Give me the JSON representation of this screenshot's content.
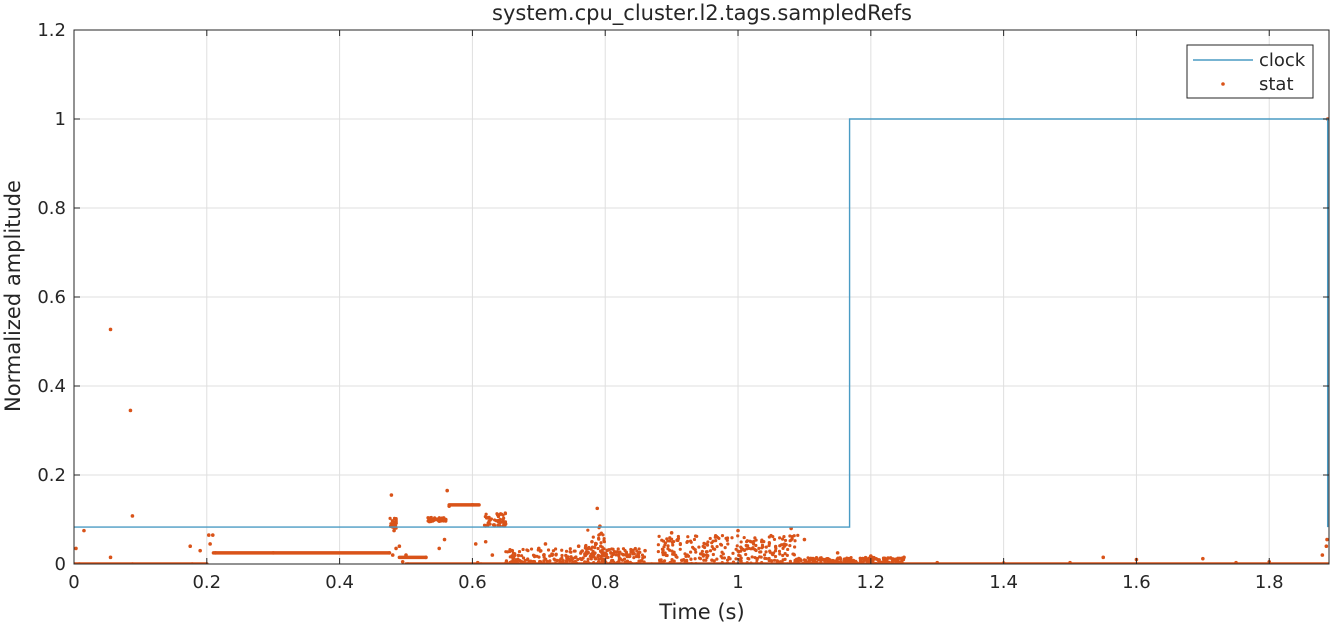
{
  "chart_data": {
    "type": "line",
    "title": "system.cpu_cluster.l2.tags.sampledRefs",
    "xlabel": "Time (s)",
    "ylabel": "Normalized amplitude",
    "xlim": [
      0,
      1.89
    ],
    "ylim": [
      0,
      1.2
    ],
    "xticks": [
      0,
      0.2,
      0.4,
      0.6,
      0.8,
      1,
      1.2,
      1.4,
      1.6,
      1.8
    ],
    "xtick_labels": [
      "0",
      "0.2",
      "0.4",
      "0.6",
      "0.8",
      "1",
      "1.2",
      "1.4",
      "1.6",
      "1.8"
    ],
    "yticks": [
      0,
      0.2,
      0.4,
      0.6,
      0.8,
      1,
      1.2
    ],
    "ytick_labels": [
      "0",
      "0.2",
      "0.4",
      "0.6",
      "0.8",
      "1",
      "1.2"
    ],
    "grid": true,
    "legend_position": "top-right",
    "colors": {
      "clock": "#4a9bc4",
      "stat": "#d95319",
      "axis": "#262626",
      "grid": "#dfdfdf"
    },
    "series": [
      {
        "name": "clock",
        "style": "step-line",
        "x": [
          0,
          1.168,
          1.168,
          1.888,
          1.888
        ],
        "y": [
          0.083,
          0.083,
          1.0,
          1.0,
          0.083
        ]
      },
      {
        "name": "stat",
        "style": "markers",
        "points": [
          [
            0.0,
            0.0
          ],
          [
            0.003,
            0.035
          ],
          [
            0.008,
            0.0
          ],
          [
            0.015,
            0.075
          ],
          [
            0.055,
            0.527
          ],
          [
            0.055,
            0.015
          ],
          [
            0.085,
            0.345
          ],
          [
            0.088,
            0.108
          ],
          [
            0.088,
            0.0
          ],
          [
            0.175,
            0.04
          ],
          [
            0.178,
            0.0
          ],
          [
            0.19,
            0.03
          ],
          [
            0.2,
            0.0
          ],
          [
            0.203,
            0.065
          ],
          [
            0.205,
            0.045
          ],
          [
            0.209,
            0.065
          ],
          [
            0.213,
            0.025
          ],
          [
            0.3,
            0.025
          ],
          [
            0.475,
            0.025
          ],
          [
            0.478,
            0.155
          ],
          [
            0.48,
            0.02
          ],
          [
            0.482,
            0.075
          ],
          [
            0.485,
            0.035
          ],
          [
            0.49,
            0.04
          ],
          [
            0.495,
            0.005
          ],
          [
            0.5,
            0.02
          ],
          [
            0.503,
            0.0
          ],
          [
            0.53,
            0.015
          ],
          [
            0.55,
            0.035
          ],
          [
            0.558,
            0.055
          ],
          [
            0.562,
            0.165
          ],
          [
            0.565,
            0.13
          ],
          [
            0.6,
            0.133
          ],
          [
            0.605,
            0.045
          ],
          [
            0.608,
            0.003
          ],
          [
            0.613,
            0.0
          ],
          [
            0.62,
            0.05
          ],
          [
            0.63,
            0.02
          ],
          [
            0.65,
            0.09
          ],
          [
            0.652,
            0.0
          ],
          [
            0.66,
            0.03
          ],
          [
            0.7,
            0.035
          ],
          [
            0.71,
            0.045
          ],
          [
            0.715,
            0.0
          ],
          [
            0.76,
            0.04
          ],
          [
            0.78,
            0.05
          ],
          [
            0.788,
            0.125
          ],
          [
            0.792,
            0.085
          ],
          [
            0.8,
            0.02
          ],
          [
            0.86,
            0.03
          ],
          [
            0.87,
            0.0
          ],
          [
            0.9,
            0.07
          ],
          [
            1.0,
            0.075
          ],
          [
            1.08,
            0.08
          ],
          [
            1.1,
            0.055
          ],
          [
            1.15,
            0.025
          ],
          [
            1.2,
            0.018
          ],
          [
            1.25,
            0.015
          ],
          [
            1.3,
            0.003
          ],
          [
            1.4,
            0.002
          ],
          [
            1.5,
            0.003
          ],
          [
            1.55,
            0.015
          ],
          [
            1.6,
            0.01
          ],
          [
            1.7,
            0.012
          ],
          [
            1.75,
            0.003
          ],
          [
            1.8,
            0.005
          ],
          [
            1.88,
            0.02
          ],
          [
            1.886,
            0.04
          ],
          [
            1.887,
            0.055
          ],
          [
            1.888,
            1.0
          ]
        ],
        "segments": [
          {
            "x": [
              0.21,
              0.475
            ],
            "y": [
              0.025,
              0.025
            ]
          },
          {
            "x": [
              0.0,
              0.2
            ],
            "y": [
              0.0,
              0.0
            ]
          },
          {
            "x": [
              0.49,
              0.53
            ],
            "y": [
              0.015,
              0.015
            ]
          },
          {
            "x": [
              0.5,
              1.89
            ],
            "y": [
              0.0,
              0.0
            ]
          },
          {
            "x": [
              0.54,
              0.56
            ],
            "y": [
              0.1,
              0.1
            ]
          },
          {
            "x": [
              0.565,
              0.61
            ],
            "y": [
              0.133,
              0.133
            ]
          }
        ],
        "clusters": [
          {
            "x": [
              0.476,
              0.486
            ],
            "y": [
              0.08,
              0.105
            ]
          },
          {
            "x": [
              0.533,
              0.56
            ],
            "y": [
              0.095,
              0.105
            ]
          },
          {
            "x": [
              0.617,
              0.65
            ],
            "y": [
              0.085,
              0.115
            ]
          },
          {
            "x": [
              0.65,
              0.86
            ],
            "y": [
              0.0,
              0.035
            ]
          },
          {
            "x": [
              0.77,
              0.8
            ],
            "y": [
              0.0,
              0.085
            ]
          },
          {
            "x": [
              0.88,
              1.09
            ],
            "y": [
              0.0,
              0.065
            ]
          },
          {
            "x": [
              1.09,
              1.25
            ],
            "y": [
              0.0,
              0.015
            ]
          }
        ]
      }
    ]
  }
}
